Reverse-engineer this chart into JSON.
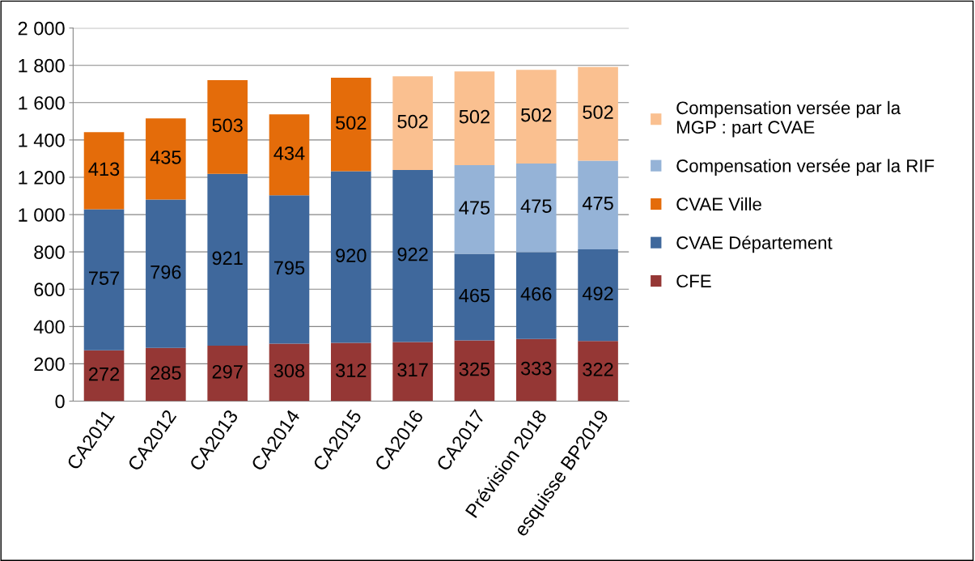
{
  "chart_data": {
    "type": "bar",
    "stacked": true,
    "categories": [
      "CA2011",
      "CA2012",
      "CA2013",
      "CA2014",
      "CA2015",
      "CA2016",
      "CA2017",
      "Prévision 2018",
      "esquisse BP2019"
    ],
    "series": [
      {
        "name": "CFE",
        "color": "#953735",
        "values": [
          272,
          285,
          297,
          308,
          312,
          317,
          325,
          333,
          322
        ]
      },
      {
        "name": "CVAE Département",
        "color": "#3f689c",
        "values": [
          757,
          796,
          921,
          795,
          920,
          922,
          465,
          466,
          492
        ]
      },
      {
        "name": "CVAE Ville",
        "color": "#e46c0a",
        "values": [
          413,
          435,
          503,
          434,
          502,
          null,
          null,
          null,
          null
        ]
      },
      {
        "name": "Compensation versée par la RIF",
        "color": "#95b3d7",
        "values": [
          null,
          null,
          null,
          null,
          null,
          null,
          475,
          475,
          475
        ]
      },
      {
        "name": "Compensation versée par la\nMGP : part CVAE",
        "color": "#fac090",
        "values": [
          null,
          null,
          null,
          null,
          null,
          502,
          502,
          502,
          502
        ]
      }
    ],
    "ylim": [
      0,
      2000
    ],
    "yticks": [
      0,
      {
        "value": 200,
        "label": "200"
      },
      {
        "value": 400,
        "label": "400"
      },
      {
        "value": 600,
        "label": "600"
      },
      {
        "value": 800,
        "label": "800"
      },
      {
        "value": 1000,
        "label": "1 000"
      },
      {
        "value": 1200,
        "label": "1 200"
      },
      {
        "value": 1400,
        "label": "1 400"
      },
      {
        "value": 1600,
        "label": "1 600"
      },
      {
        "value": 1800,
        "label": "1 800"
      },
      {
        "value": 2000,
        "label": "2 000"
      }
    ],
    "grid": "y",
    "legend": "right",
    "data_labels": true
  }
}
